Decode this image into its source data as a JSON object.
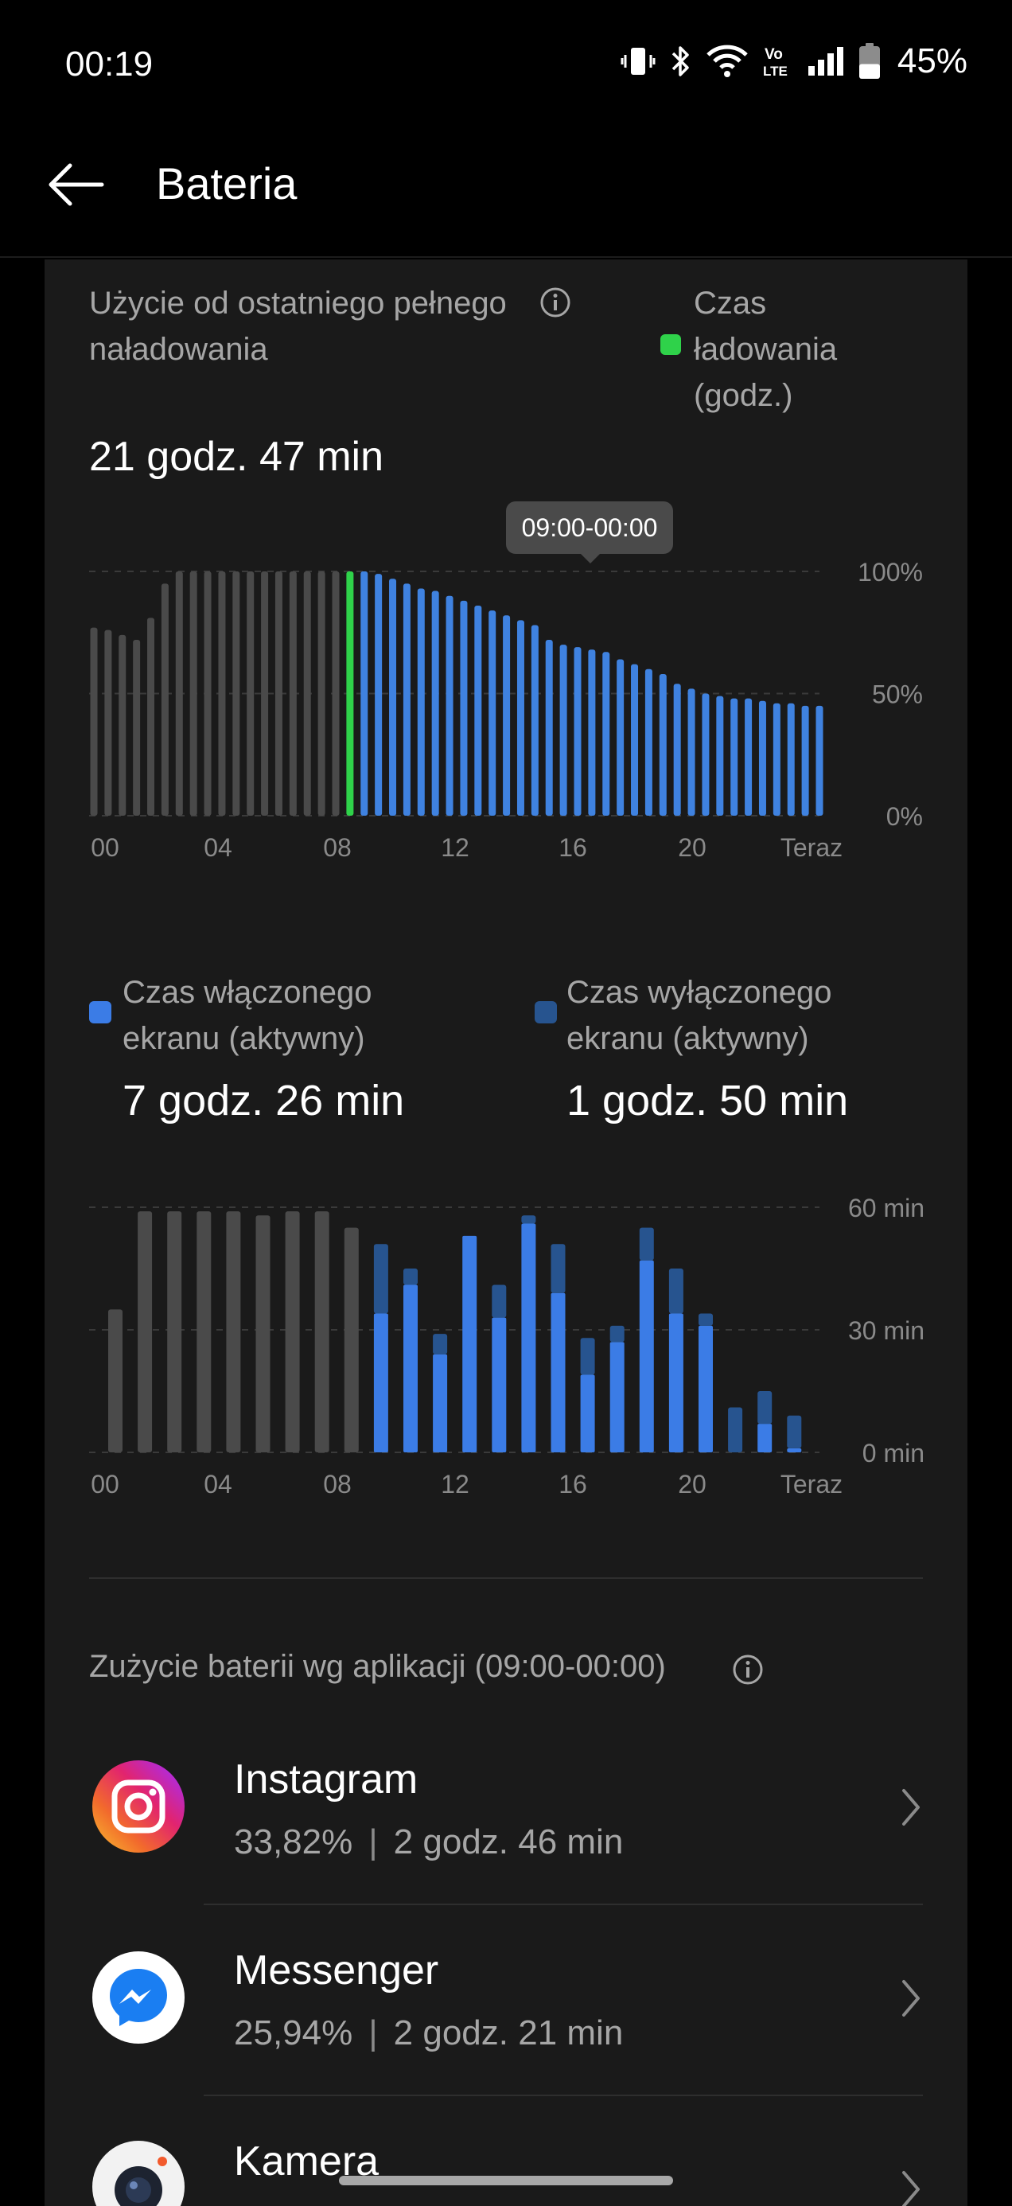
{
  "status_bar": {
    "time": "00:19",
    "battery_percent": "45%",
    "battery_level": 0.45,
    "icons": [
      "vibrate-icon",
      "bluetooth-icon",
      "wifi-icon",
      "volte-icon",
      "signal-icon",
      "battery-icon"
    ],
    "volte_top": "Vo",
    "volte_bottom": "LTE"
  },
  "header": {
    "title": "Bateria",
    "back_icon": "arrow-left-icon"
  },
  "usage": {
    "label": "Użycie od ostatniego pełnego naładowania",
    "value": "21 godz. 47 min",
    "charge_legend": "Czas ładowania (godz.)",
    "charge_color": "#2fd24a",
    "tooltip": "09:00-00:00"
  },
  "screen": {
    "on_label": "Czas włączonego ekranu (aktywny)",
    "on_value": "7 godz. 26 min",
    "on_color": "#3b7ce6",
    "off_label": "Czas wyłączonego ekranu (aktywny)",
    "off_value": "1 godz. 50 min",
    "off_color": "#27548f"
  },
  "chart_data": [
    {
      "type": "bar",
      "yunit": "%",
      "ylim": [
        0,
        100
      ],
      "y_ticks": [
        "100%",
        "50%",
        "0%"
      ],
      "x_ticks": [
        "00",
        "04",
        "08",
        "12",
        "16",
        "20",
        "Teraz"
      ],
      "grid": true,
      "colors": {
        "inactive": "#4a4a4a",
        "charging": "#2fd24a",
        "active": "#3f82e0"
      },
      "charging_index": 18,
      "active_from_index": 19,
      "values": [
        77,
        76,
        74,
        72,
        81,
        95,
        100,
        100,
        100,
        100,
        100,
        100,
        100,
        100,
        100,
        100,
        100,
        100,
        100,
        100,
        99,
        97,
        95,
        93,
        92,
        90,
        88,
        86,
        84,
        82,
        80,
        78,
        72,
        70,
        69,
        68,
        67,
        64,
        62,
        60,
        58,
        54,
        52,
        50,
        49,
        48,
        48,
        47,
        46,
        46,
        45,
        45
      ]
    },
    {
      "type": "bar",
      "stacked": true,
      "yunit": "min",
      "ylim": [
        0,
        60
      ],
      "y_ticks": [
        "60 min",
        "30 min",
        "0 min"
      ],
      "x_ticks": [
        "00",
        "04",
        "08",
        "12",
        "16",
        "20",
        "Teraz"
      ],
      "grid": true,
      "colors": {
        "inactive": "#4a4a4a",
        "screen_on": "#3b7ce6",
        "screen_off": "#27548f"
      },
      "active_from_index": 9,
      "series": [
        {
          "name": "Czas włączonego ekranu (aktywny)",
          "values": [
            0,
            0,
            0,
            0,
            0,
            0,
            0,
            0,
            0,
            34,
            41,
            24,
            53,
            33,
            56,
            39,
            19,
            27,
            47,
            34,
            31,
            0,
            7,
            1
          ]
        },
        {
          "name": "Czas wyłączonego ekranu (aktywny)",
          "values": [
            0,
            0,
            0,
            0,
            0,
            0,
            0,
            0,
            0,
            17,
            4,
            5,
            0,
            8,
            2,
            12,
            9,
            4,
            8,
            11,
            3,
            11,
            8,
            8
          ]
        },
        {
          "name": "",
          "values": [
            35,
            59,
            59,
            59,
            59,
            58,
            59,
            59,
            55,
            0,
            0,
            0,
            0,
            0,
            0,
            0,
            0,
            0,
            0,
            0,
            0,
            0,
            0,
            0
          ]
        }
      ]
    }
  ],
  "apps": {
    "title": "Zużycie baterii wg aplikacji (09:00-00:00)",
    "items": [
      {
        "name": "Instagram",
        "percent": "33,82%",
        "time": "2 godz. 46 min",
        "icon": "instagram-icon"
      },
      {
        "name": "Messenger",
        "percent": "25,94%",
        "time": "2 godz. 21 min",
        "icon": "messenger-icon"
      },
      {
        "name": "Kamera",
        "percent": "",
        "time": "",
        "icon": "camera-icon"
      }
    ]
  }
}
